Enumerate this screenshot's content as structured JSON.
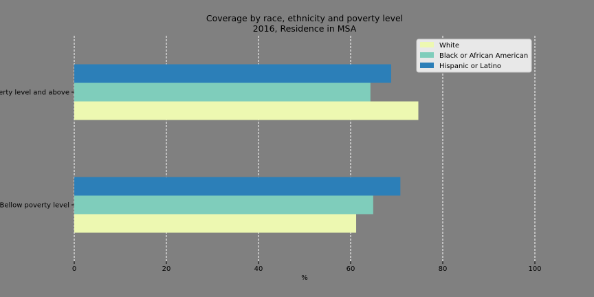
{
  "chart_data": {
    "type": "bar",
    "orientation": "horizontal",
    "title": "Coverage by race, ethnicity and poverty level",
    "subtitle": "2016, Residence in MSA",
    "xlabel": "%",
    "ylabel": "",
    "xlim": [
      0,
      100
    ],
    "xticks": [
      0,
      20,
      40,
      60,
      80,
      100
    ],
    "grid": "x-dashed",
    "legend_position": "top-right",
    "categories": [
      "Bellow poverty level",
      "Poverty level and above"
    ],
    "series": [
      {
        "name": "White",
        "color": "#edf8b1",
        "values": [
          61.2,
          74.7
        ]
      },
      {
        "name": "Black or African American",
        "color": "#7fcdbb",
        "values": [
          64.9,
          64.3
        ]
      },
      {
        "name": "Hispanic or Latino",
        "color": "#2c7fb8",
        "values": [
          70.8,
          68.8
        ]
      }
    ]
  }
}
